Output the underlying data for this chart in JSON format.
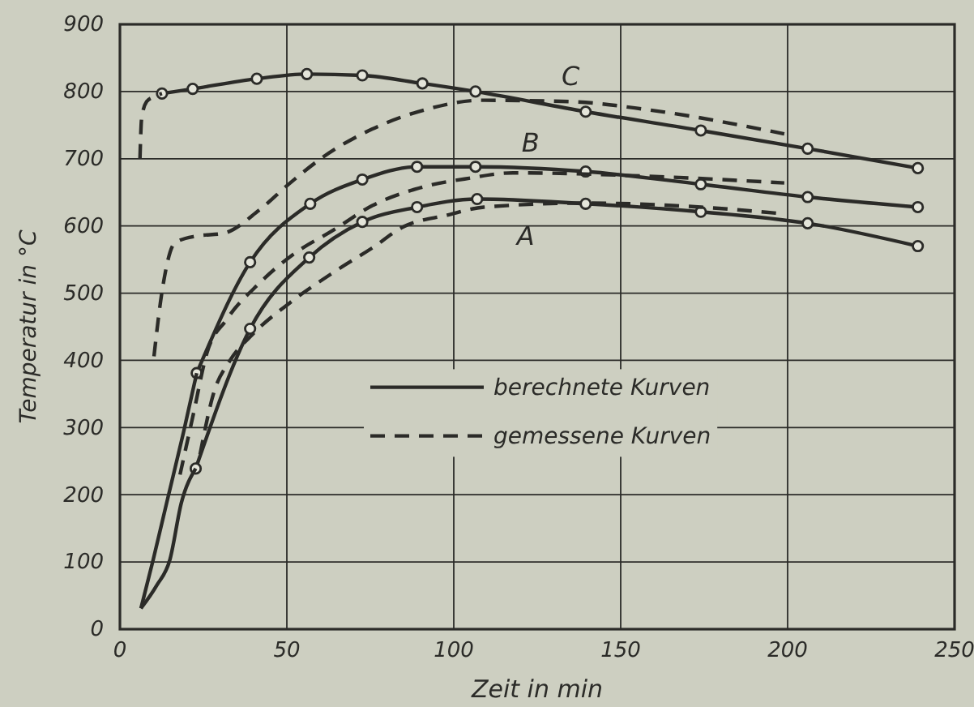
{
  "chart_data": {
    "type": "line",
    "xlabel": "Zeit in min",
    "ylabel": "Temperatur in °C",
    "xlim": [
      0,
      250
    ],
    "ylim": [
      0,
      900
    ],
    "xticks": [
      0,
      50,
      100,
      150,
      200,
      {
        "value": 250,
        "label": "250"
      }
    ],
    "yticks": [
      0,
      100,
      200,
      300,
      400,
      500,
      600,
      700,
      800,
      900
    ],
    "grid": true,
    "legend": "center",
    "series": [
      {
        "name": "berechnete Kurven",
        "color": "#2b2b28",
        "line_style": "solid",
        "marker": "circle",
        "x": [
          12.6,
          21.8,
          41,
          56,
          72.6,
          90.6,
          106.5,
          139.5,
          174,
          206,
          239
        ],
        "values": [
          797,
          804,
          819,
          826,
          824,
          812,
          800,
          770,
          742,
          715,
          686
        ]
      },
      {
        "color": "#2b2b28",
        "line_style": "solid",
        "marker": "circle",
        "x": [
          23,
          39,
          57,
          72.6,
          89,
          106.5,
          139.5,
          174,
          206,
          239
        ],
        "values": [
          381,
          546,
          633,
          669,
          688,
          688,
          681,
          662,
          643,
          628
        ]
      },
      {
        "color": "#2b2b28",
        "line_style": "solid",
        "marker": "circle",
        "x": [
          22.7,
          39,
          56.7,
          72.6,
          89,
          107,
          139.5,
          174,
          206,
          239
        ],
        "values": [
          239,
          447,
          553,
          606,
          628,
          640,
          633,
          621,
          604,
          570
        ]
      },
      {
        "color": "#2b2b28",
        "line_style": "solid",
        "marker": "none",
        "x": [
          6.3,
          10,
          14,
          19,
          23
        ],
        "values": [
          31,
          104,
          188,
          292,
          381
        ]
      },
      {
        "color": "#2b2b28",
        "line_style": "solid",
        "marker": "none",
        "x": [
          6.3,
          11,
          15,
          18.4,
          22.7
        ],
        "values": [
          31,
          65,
          104,
          188,
          239
        ]
      },
      {
        "name": "gemessene Kurven",
        "color": "#2b2b28",
        "line_style": "dashed",
        "marker": "none",
        "x": [
          10.2,
          12.6,
          16.5,
          23,
          31,
          41.6,
          51,
          61,
          75.5,
          91.5,
          108,
          135,
          158,
          199
        ],
        "values": [
          406,
          502,
          575,
          585,
          589,
          623,
          664,
          703,
          744,
          773,
          787,
          785,
          773,
          737
        ]
      },
      {
        "color": "#2b2b28",
        "line_style": "dashed",
        "marker": "none",
        "x": [
          6,
          6.5,
          8,
          10,
          12.6
        ],
        "values": [
          700,
          760,
          785,
          792,
          797
        ]
      },
      {
        "color": "#2b2b28",
        "line_style": "dashed",
        "marker": "none",
        "x": [
          18,
          22,
          26,
          32,
          41.6,
          52,
          64,
          75.5,
          88.6,
          104.6,
          117.7,
          158,
          199
        ],
        "values": [
          230,
          320,
          410,
          461,
          514,
          558,
          594,
          630,
          655,
          671,
          679,
          674,
          664
        ]
      },
      {
        "color": "#2b2b28",
        "line_style": "dashed",
        "marker": "none",
        "x": [
          24,
          28,
          33,
          40,
          51,
          64,
          75.5,
          85,
          98,
          109,
          140,
          174,
          199
        ],
        "values": [
          260,
          350,
          400,
          440,
          486,
          531,
          567,
          599,
          616,
          628,
          634,
          628,
          618
        ]
      }
    ],
    "annotations": [
      {
        "text": "C",
        "x": 135,
        "y": 785
      },
      {
        "text": "B",
        "x": 123,
        "y": 686
      },
      {
        "text": "A",
        "x": 121.5,
        "y": 630
      }
    ]
  }
}
